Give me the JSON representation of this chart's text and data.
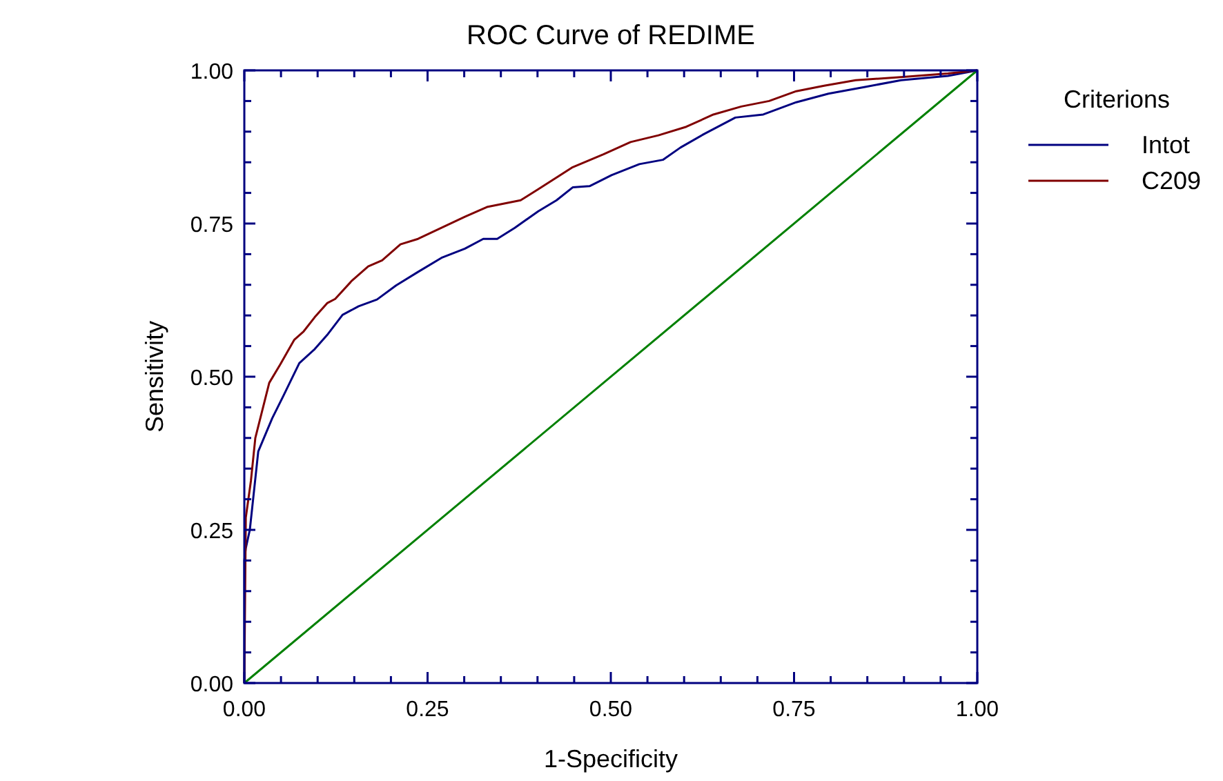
{
  "chart_data": {
    "type": "line",
    "title": "ROC Curve of REDIME",
    "xlabel": "1-Specificity",
    "ylabel": "Sensitivity",
    "legend_title": "Criterions",
    "legend": "right",
    "grid": false,
    "marker": "none",
    "line_style": "solid",
    "xlim": [
      0,
      1
    ],
    "ylim": [
      0,
      1
    ],
    "xticks": [
      {
        "value": 0,
        "label": "0.00"
      },
      {
        "value": 0.05,
        "label": null
      },
      {
        "value": 0.1,
        "label": null
      },
      {
        "value": 0.15,
        "label": null
      },
      {
        "value": 0.2,
        "label": null
      },
      {
        "value": 0.25,
        "label": "0.25"
      },
      {
        "value": 0.3,
        "label": null
      },
      {
        "value": 0.35,
        "label": null
      },
      {
        "value": 0.4,
        "label": null
      },
      {
        "value": 0.45,
        "label": null
      },
      {
        "value": 0.5,
        "label": "0.50"
      },
      {
        "value": 0.55,
        "label": null
      },
      {
        "value": 0.6,
        "label": null
      },
      {
        "value": 0.65,
        "label": null
      },
      {
        "value": 0.7,
        "label": null
      },
      {
        "value": 0.75,
        "label": "0.75"
      },
      {
        "value": 0.8,
        "label": null
      },
      {
        "value": 0.85,
        "label": null
      },
      {
        "value": 0.9,
        "label": null
      },
      {
        "value": 0.95,
        "label": null
      },
      {
        "value": 1,
        "label": "1.00"
      }
    ],
    "yticks": [
      {
        "value": 0,
        "label": "0.00"
      },
      {
        "value": 0.05,
        "label": null
      },
      {
        "value": 0.1,
        "label": null
      },
      {
        "value": 0.15,
        "label": null
      },
      {
        "value": 0.2,
        "label": null
      },
      {
        "value": 0.25,
        "label": "0.25"
      },
      {
        "value": 0.3,
        "label": null
      },
      {
        "value": 0.35,
        "label": null
      },
      {
        "value": 0.4,
        "label": null
      },
      {
        "value": 0.45,
        "label": null
      },
      {
        "value": 0.5,
        "label": "0.50"
      },
      {
        "value": 0.55,
        "label": null
      },
      {
        "value": 0.6,
        "label": null
      },
      {
        "value": 0.65,
        "label": null
      },
      {
        "value": 0.7,
        "label": null
      },
      {
        "value": 0.75,
        "label": "0.75"
      },
      {
        "value": 0.8,
        "label": null
      },
      {
        "value": 0.85,
        "label": null
      },
      {
        "value": 0.9,
        "label": null
      },
      {
        "value": 0.95,
        "label": null
      },
      {
        "value": 1,
        "label": "1.00"
      }
    ],
    "series": [
      {
        "name": "Intot",
        "color": "#000080",
        "x": [
          0,
          0,
          0.002,
          0.0075,
          0.019,
          0.038,
          0.053,
          0.075,
          0.096,
          0.113,
          0.134,
          0.156,
          0.181,
          0.207,
          0.237,
          0.269,
          0.301,
          0.326,
          0.345,
          0.369,
          0.401,
          0.426,
          0.448,
          0.471,
          0.501,
          0.539,
          0.571,
          0.595,
          0.627,
          0.67,
          0.708,
          0.753,
          0.797,
          0.847,
          0.896,
          0.96,
          1
        ],
        "values": [
          0,
          0.2,
          0.22,
          0.25,
          0.378,
          0.432,
          0.468,
          0.522,
          0.545,
          0.568,
          0.601,
          0.615,
          0.626,
          0.649,
          0.671,
          0.694,
          0.709,
          0.725,
          0.725,
          0.743,
          0.77,
          0.788,
          0.809,
          0.811,
          0.829,
          0.847,
          0.854,
          0.874,
          0.896,
          0.923,
          0.928,
          0.948,
          0.962,
          0.973,
          0.984,
          0.991,
          1
        ]
      },
      {
        "name": "C209",
        "color": "#800000",
        "x": [
          0,
          0.002,
          0.009,
          0.015,
          0.034,
          0.049,
          0.068,
          0.081,
          0.096,
          0.113,
          0.124,
          0.147,
          0.169,
          0.188,
          0.213,
          0.237,
          0.269,
          0.301,
          0.331,
          0.377,
          0.401,
          0.448,
          0.49,
          0.527,
          0.565,
          0.603,
          0.64,
          0.678,
          0.716,
          0.753,
          0.791,
          0.834,
          0.896,
          0.96,
          1
        ],
        "values": [
          0,
          0.27,
          0.33,
          0.4,
          0.49,
          0.52,
          0.56,
          0.574,
          0.597,
          0.62,
          0.627,
          0.657,
          0.68,
          0.69,
          0.716,
          0.725,
          0.743,
          0.761,
          0.777,
          0.788,
          0.806,
          0.842,
          0.863,
          0.883,
          0.894,
          0.908,
          0.928,
          0.941,
          0.95,
          0.966,
          0.975,
          0.984,
          0.989,
          0.995,
          1
        ]
      },
      {
        "type": "line",
        "color": "#008000",
        "x": [
          0,
          1
        ],
        "values": [
          0,
          1
        ]
      }
    ]
  }
}
